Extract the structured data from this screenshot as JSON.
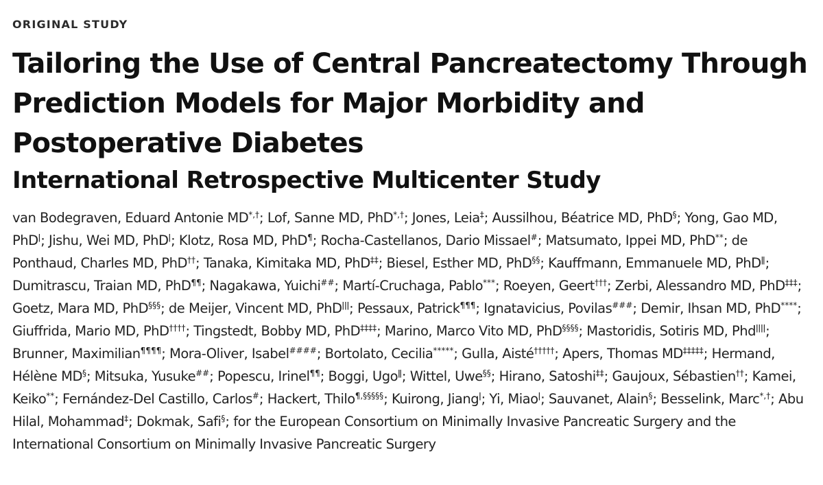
{
  "section_label": "ORIGINAL STUDY",
  "title": "Tailoring the Use of Central Pancreatectomy Through Prediction Models for Major Morbidity and Postoperative Diabetes",
  "subtitle": "International Retrospective Multicenter Study",
  "authors": [
    {
      "name": "van Bodegraven, Eduard Antonie MD",
      "sup": "*,†"
    },
    {
      "name": "Lof, Sanne MD, PhD",
      "sup": "*,†"
    },
    {
      "name": "Jones, Leia",
      "sup": "‡"
    },
    {
      "name": "Aussilhou, Béatrice MD, PhD",
      "sup": "§"
    },
    {
      "name": "Yong, Gao MD, PhD",
      "sup": "ǀ"
    },
    {
      "name": "Jishu, Wei MD, PhD",
      "sup": "ǀ"
    },
    {
      "name": "Klotz, Rosa MD, PhD",
      "sup": "¶"
    },
    {
      "name": "Rocha-Castellanos, Dario Missael",
      "sup": "#"
    },
    {
      "name": "Matsumato, Ippei MD, PhD",
      "sup": "**"
    },
    {
      "name": "de Ponthaud, Charles MD, PhD",
      "sup": "††"
    },
    {
      "name": "Tanaka, Kimitaka MD, PhD",
      "sup": "‡‡"
    },
    {
      "name": "Biesel, Esther MD, PhD",
      "sup": "§§"
    },
    {
      "name": "Kauffmann, Emmanuele MD, PhD",
      "sup": "ǁ"
    },
    {
      "name": "Dumitrascu, Traian MD, PhD",
      "sup": "¶¶"
    },
    {
      "name": "Nagakawa, Yuichi",
      "sup": "##"
    },
    {
      "name": "Martí-Cruchaga, Pablo",
      "sup": "***"
    },
    {
      "name": "Roeyen, Geert",
      "sup": "†††"
    },
    {
      "name": "Zerbi, Alessandro MD, PhD",
      "sup": "‡‡‡"
    },
    {
      "name": "Goetz, Mara MD, PhD",
      "sup": "§§§"
    },
    {
      "name": "de Meijer, Vincent MD, PhD",
      "sup": "ǀǀǀ"
    },
    {
      "name": "Pessaux, Patrick",
      "sup": "¶¶¶"
    },
    {
      "name": "Ignatavicius, Povilas",
      "sup": "###"
    },
    {
      "name": "Demir, Ihsan MD, PhD",
      "sup": "****"
    },
    {
      "name": "Giuffrida, Mario MD, PhD",
      "sup": "††††"
    },
    {
      "name": "Tingstedt, Bobby MD, PhD",
      "sup": "‡‡‡‡"
    },
    {
      "name": "Marino, Marco Vito MD, PhD",
      "sup": "§§§§"
    },
    {
      "name": "Mastoridis, Sotiris MD, Phd",
      "sup": "ǀǀǀǀ"
    },
    {
      "name": "Brunner, Maximilian",
      "sup": "¶¶¶¶"
    },
    {
      "name": "Mora-Oliver, Isabel",
      "sup": "####"
    },
    {
      "name": "Bortolato, Cecilia",
      "sup": "*****"
    },
    {
      "name": "Gulla, Aisté",
      "sup": "†††††"
    },
    {
      "name": "Apers, Thomas MD",
      "sup": "‡‡‡‡‡"
    },
    {
      "name": "Hermand, Hélène MD",
      "sup": "§"
    },
    {
      "name": "Mitsuka, Yusuke",
      "sup": "##"
    },
    {
      "name": "Popescu, Irinel",
      "sup": "¶¶"
    },
    {
      "name": "Boggi, Ugo",
      "sup": "ǁ"
    },
    {
      "name": "Wittel, Uwe",
      "sup": "§§"
    },
    {
      "name": "Hirano, Satoshi",
      "sup": "‡‡"
    },
    {
      "name": "Gaujoux, Sébastien",
      "sup": "††"
    },
    {
      "name": "Kamei, Keiko",
      "sup": "**"
    },
    {
      "name": "Fernández-Del Castillo, Carlos",
      "sup": "#"
    },
    {
      "name": "Hackert, Thilo",
      "sup": "¶,§§§§§"
    },
    {
      "name": "Kuirong, Jiang",
      "sup": "ǀ"
    },
    {
      "name": "Yi, Miao",
      "sup": "ǀ"
    },
    {
      "name": "Sauvanet, Alain",
      "sup": "§"
    },
    {
      "name": "Besselink, Marc",
      "sup": "*,†"
    },
    {
      "name": "Abu Hilal, Mohammad",
      "sup": "‡"
    },
    {
      "name": "Dokmak, Safi",
      "sup": "§"
    }
  ],
  "consortium": "for the European Consortium on Minimally Invasive Pancreatic Surgery and the International Consortium on Minimally Invasive Pancreatic Surgery"
}
